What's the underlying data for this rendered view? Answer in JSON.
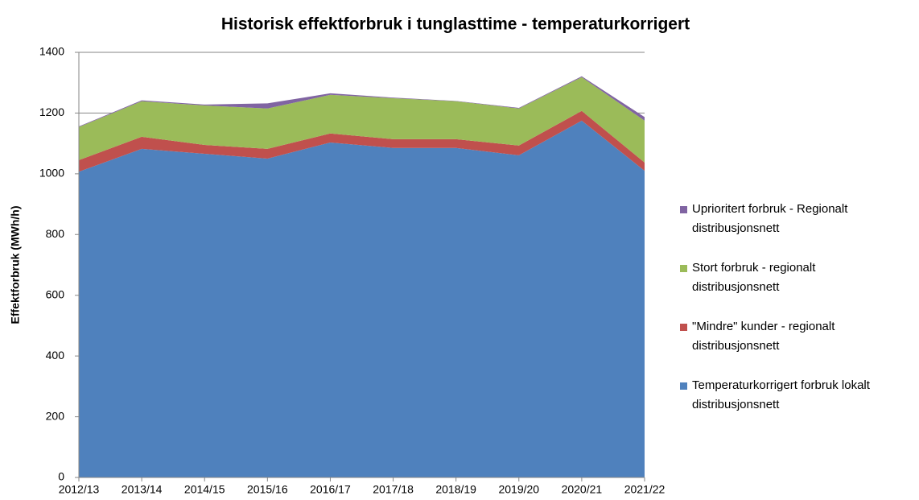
{
  "chart_data": {
    "type": "stacked-area",
    "title": "Historisk effektforbruk i tunglasttime  - temperaturkorrigert",
    "y_label": "Effektforbruk (MWh/h)",
    "categories": [
      "2012/13",
      "2013/14",
      "2014/15",
      "2015/16",
      "2016/17",
      "2017/18",
      "2018/19",
      "2019/20",
      "2020/21",
      "2021/22"
    ],
    "series": [
      {
        "name": "Temperaturkorrigert forbruk lokalt distribusjonsnett",
        "color": "#4f81bd",
        "values": [
          1007,
          1082,
          1066,
          1050,
          1103,
          1085,
          1085,
          1061,
          1175,
          1010
        ]
      },
      {
        "name": "\"Mindre\" kunder - regionalt distribusjonsnett",
        "color": "#c0504d",
        "values": [
          38,
          40,
          29,
          32,
          30,
          29,
          29,
          32,
          32,
          27
        ]
      },
      {
        "name": "Stort forbruk - regionalt distribusjonsnett",
        "color": "#9bbb59",
        "values": [
          109,
          117,
          130,
          133,
          127,
          135,
          125,
          122,
          111,
          138
        ]
      },
      {
        "name": "Uprioritert forbruk - Regionalt distribusjonsnett",
        "color": "#8064a2",
        "values": [
          2,
          3,
          3,
          17,
          5,
          2,
          1,
          2,
          3,
          12
        ]
      }
    ],
    "ylim": [
      0,
      1400
    ],
    "yticks": [
      0,
      200,
      400,
      600,
      800,
      1000,
      1200,
      1400
    ],
    "grid": true
  }
}
